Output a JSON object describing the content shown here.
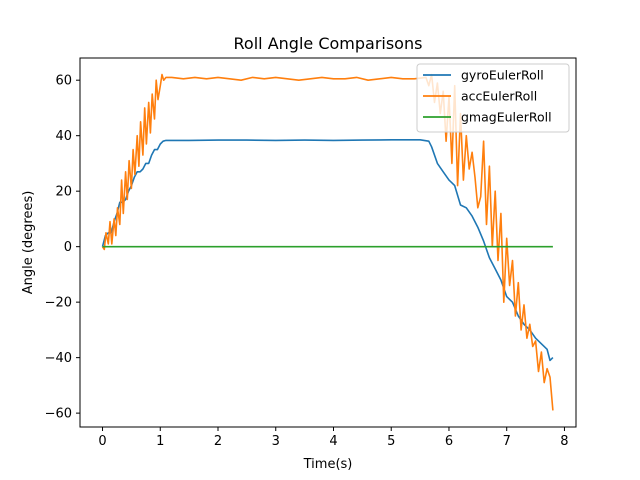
{
  "chart_data": {
    "type": "line",
    "title": "Roll Angle Comparisons",
    "xlabel": "Time(s)",
    "ylabel": "Angle (degrees)",
    "xlim": [
      -0.39,
      8.2
    ],
    "ylim": [
      -65,
      68
    ],
    "xticks": [
      0,
      1,
      2,
      3,
      4,
      5,
      6,
      7,
      8
    ],
    "yticks": [
      -60,
      -40,
      -20,
      0,
      20,
      40,
      60
    ],
    "grid": false,
    "legend_position": "top-right",
    "series": [
      {
        "name": "gyroEulerRoll",
        "color": "#1f77b4",
        "x": [
          0,
          0.05,
          0.1,
          0.15,
          0.2,
          0.25,
          0.3,
          0.35,
          0.4,
          0.45,
          0.5,
          0.55,
          0.6,
          0.65,
          0.7,
          0.75,
          0.8,
          0.85,
          0.9,
          0.95,
          1.0,
          1.05,
          1.1,
          1.5,
          2.0,
          2.5,
          3.0,
          3.5,
          4.0,
          4.5,
          5.0,
          5.5,
          5.65,
          5.7,
          5.8,
          5.9,
          6.0,
          6.05,
          6.1,
          6.2,
          6.3,
          6.4,
          6.5,
          6.6,
          6.7,
          6.8,
          6.9,
          7.0,
          7.1,
          7.2,
          7.3,
          7.4,
          7.5,
          7.6,
          7.7,
          7.75,
          7.8
        ],
        "values": [
          0,
          4,
          5,
          5,
          9,
          12,
          16,
          16,
          17,
          20,
          22,
          25,
          27,
          27,
          28,
          30,
          30,
          33,
          35,
          35,
          37,
          38,
          38.3,
          38.3,
          38.4,
          38.4,
          38.3,
          38.4,
          38.3,
          38.4,
          38.5,
          38.5,
          38,
          36,
          30,
          27,
          24,
          23,
          22,
          15,
          14,
          11,
          7,
          2,
          -4,
          -8,
          -12,
          -18,
          -20,
          -25,
          -28,
          -30,
          -33,
          -35,
          -37,
          -41,
          -40
        ]
      },
      {
        "name": "accEulerRoll",
        "color": "#ff7f0e",
        "x": [
          0,
          0.03,
          0.06,
          0.1,
          0.13,
          0.16,
          0.2,
          0.23,
          0.26,
          0.3,
          0.33,
          0.36,
          0.4,
          0.43,
          0.46,
          0.5,
          0.53,
          0.56,
          0.6,
          0.63,
          0.66,
          0.7,
          0.73,
          0.76,
          0.8,
          0.83,
          0.86,
          0.9,
          0.93,
          0.96,
          1.0,
          1.03,
          1.06,
          1.1,
          1.2,
          1.4,
          1.6,
          1.8,
          2.0,
          2.2,
          2.4,
          2.6,
          2.8,
          3.0,
          3.2,
          3.4,
          3.6,
          3.8,
          4.0,
          4.2,
          4.4,
          4.6,
          4.8,
          5.0,
          5.2,
          5.4,
          5.6,
          5.65,
          5.7,
          5.75,
          5.8,
          5.85,
          5.9,
          5.95,
          6.0,
          6.05,
          6.1,
          6.15,
          6.2,
          6.25,
          6.3,
          6.35,
          6.4,
          6.45,
          6.5,
          6.55,
          6.6,
          6.65,
          6.7,
          6.75,
          6.8,
          6.85,
          6.9,
          6.95,
          7.0,
          7.05,
          7.1,
          7.15,
          7.2,
          7.25,
          7.3,
          7.35,
          7.4,
          7.45,
          7.5,
          7.55,
          7.6,
          7.65,
          7.7,
          7.75,
          7.8
        ],
        "values": [
          0,
          -1,
          5,
          1,
          9,
          1,
          10,
          4,
          14,
          8,
          24,
          12,
          27,
          17,
          31,
          21,
          35,
          26,
          40,
          29,
          45,
          33,
          50,
          37,
          52,
          41,
          55,
          46,
          60,
          53,
          58,
          62,
          60,
          61,
          61,
          60.5,
          61,
          60.5,
          61,
          60.5,
          60,
          61,
          60.5,
          61,
          60.5,
          60,
          60.5,
          61,
          60.5,
          60.5,
          61,
          60,
          60.5,
          61,
          60.5,
          60.5,
          61,
          58,
          62,
          52,
          59,
          48,
          56,
          38,
          54,
          30,
          58,
          22,
          48,
          24,
          40,
          28,
          34,
          25,
          14,
          18,
          38,
          8,
          29,
          0,
          20,
          -5,
          12,
          -20,
          3,
          -14,
          -5,
          -25,
          -13,
          -30,
          -21,
          -33,
          -28,
          -36,
          -34,
          -45,
          -38,
          -49,
          -44,
          -47,
          -59
        ]
      },
      {
        "name": "gmagEulerRoll",
        "color": "#2ca02c",
        "x": [
          0,
          7.8
        ],
        "values": [
          0,
          0
        ]
      }
    ]
  }
}
